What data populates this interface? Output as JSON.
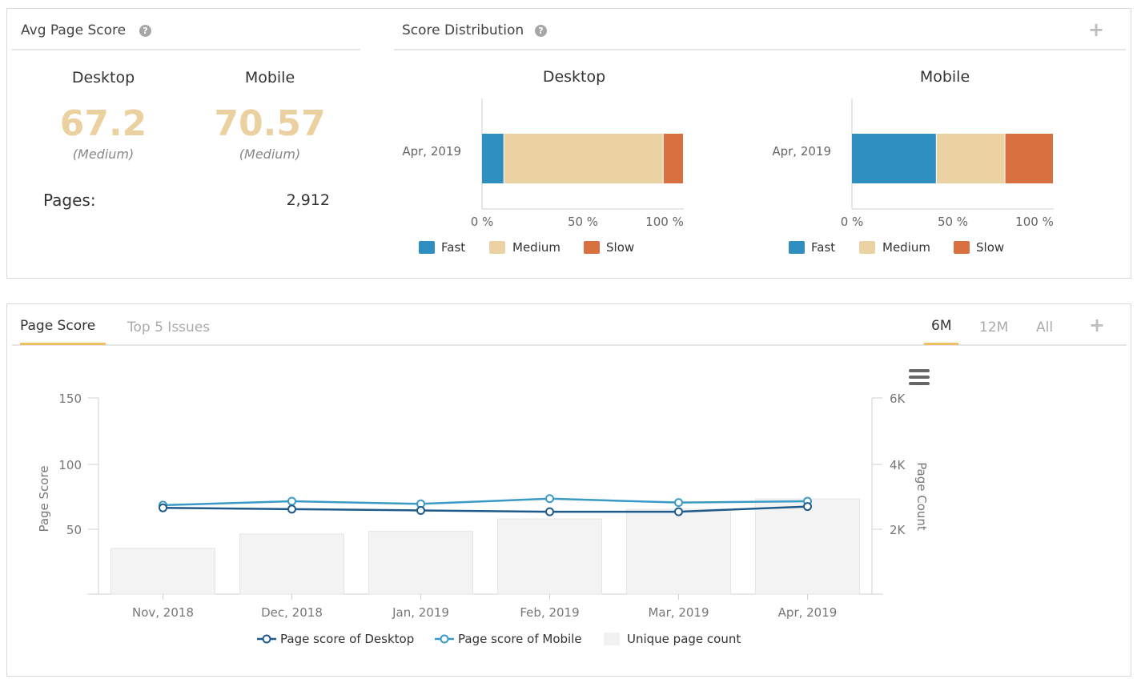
{
  "avg_panel": {
    "title": "Avg Page Score",
    "desktop": {
      "label": "Desktop",
      "score": "67.2",
      "rating": "(Medium)"
    },
    "mobile": {
      "label": "Mobile",
      "score": "70.57",
      "rating": "(Medium)"
    },
    "pages_label": "Pages:",
    "pages_value": "2,912"
  },
  "dist_panel": {
    "title": "Score Distribution",
    "legend": {
      "fast": "Fast",
      "medium": "Medium",
      "slow": "Slow"
    },
    "axis_ticks": [
      "0 %",
      "50 %",
      "100 %"
    ],
    "colors": {
      "fast": "#2e8fc0",
      "medium": "#ebd2a2",
      "slow": "#d87040"
    }
  },
  "bottom_panel": {
    "tabs": {
      "page_score": "Page Score",
      "top_issues": "Top 5 Issues"
    },
    "ranges": {
      "six": "6M",
      "twelve": "12M",
      "all": "All"
    },
    "active_tab_color": "#f0c060"
  },
  "chart_data": [
    {
      "type": "bar",
      "orientation": "horizontal",
      "stacked": true,
      "title": "Desktop",
      "categories": [
        "Apr, 2019"
      ],
      "xlim": [
        0,
        100
      ],
      "series": [
        {
          "name": "Fast",
          "values": [
            11
          ]
        },
        {
          "name": "Medium",
          "values": [
            79
          ]
        },
        {
          "name": "Slow",
          "values": [
            10
          ]
        }
      ]
    },
    {
      "type": "bar",
      "orientation": "horizontal",
      "stacked": true,
      "title": "Mobile",
      "categories": [
        "Apr, 2019"
      ],
      "xlim": [
        0,
        100
      ],
      "series": [
        {
          "name": "Fast",
          "values": [
            42
          ]
        },
        {
          "name": "Medium",
          "values": [
            34
          ]
        },
        {
          "name": "Slow",
          "values": [
            24
          ]
        }
      ]
    },
    {
      "type": "line",
      "categories": [
        "Nov, 2018",
        "Dec, 2018",
        "Jan, 2019",
        "Feb, 2019",
        "Mar, 2019",
        "Apr, 2019"
      ],
      "ylabel": "Page Score",
      "y2label": "Page Count",
      "ylim": [
        0,
        150
      ],
      "y_ticks": [
        "50",
        "100",
        "150"
      ],
      "y2lim": [
        0,
        6000
      ],
      "y2_ticks": [
        "2K",
        "4K",
        "6K"
      ],
      "series": [
        {
          "name": "Page score of Desktop",
          "axis": "left",
          "values": [
            66,
            65,
            64,
            63,
            63,
            67
          ]
        },
        {
          "name": "Page score of Mobile",
          "axis": "left",
          "values": [
            68,
            71,
            69,
            73,
            70,
            71
          ]
        },
        {
          "name": "Unique page count",
          "type": "bar",
          "axis": "right",
          "values": [
            1400,
            1840,
            1920,
            2300,
            2600,
            2912
          ]
        }
      ]
    }
  ]
}
